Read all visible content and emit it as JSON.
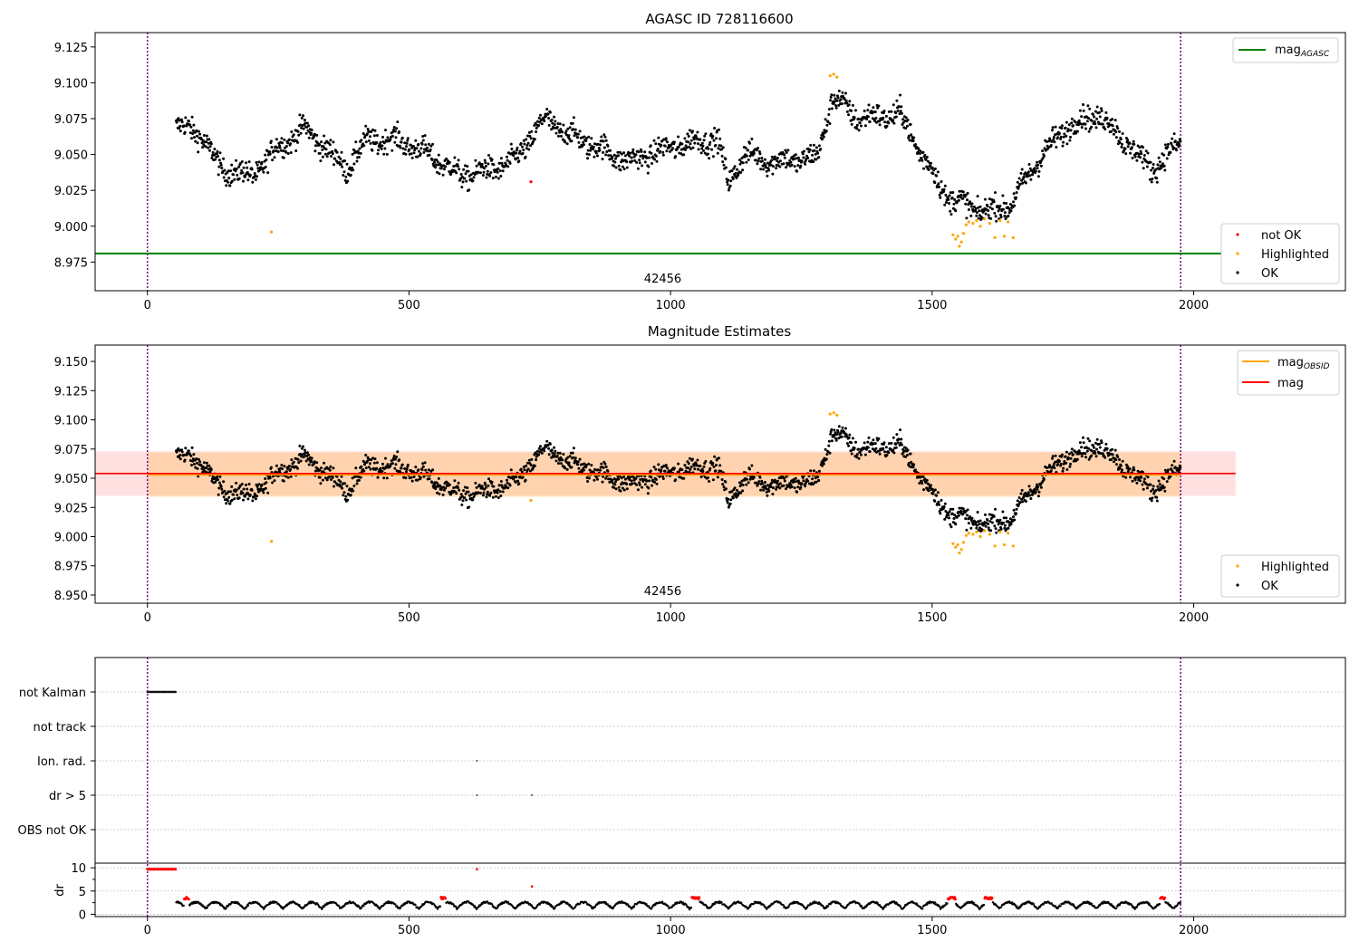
{
  "chart_data": [
    {
      "type": "scatter",
      "title": "AGASC ID 728116600",
      "xlim": [
        -100,
        2290
      ],
      "ylim": [
        8.955,
        9.135
      ],
      "xticks": [
        0,
        500,
        1000,
        1500,
        2000
      ],
      "yticks": [
        8.975,
        9.0,
        9.025,
        9.05,
        9.075,
        9.1,
        9.125
      ],
      "ytick_labels": [
        "8.975",
        "9.000",
        "9.025",
        "9.050",
        "9.075",
        "9.100",
        "9.125"
      ],
      "obsid_label": "42456",
      "obsid_label_x": 985,
      "vlines": [
        0,
        1975
      ],
      "hline_agasc": 8.981,
      "hline_x": [
        -100,
        2080
      ],
      "line_legend": [
        {
          "label": "mag",
          "sub": "AGASC",
          "color": "#008000"
        }
      ],
      "point_legend": [
        {
          "label": "not OK",
          "color": "#ff0000"
        },
        {
          "label": "Highlighted",
          "color": "#ffa500"
        },
        {
          "label": "OK",
          "color": "#000000"
        }
      ],
      "series": [
        {
          "name": "OK",
          "color": "#000000",
          "x_range": [
            55,
            1975
          ],
          "trend": [
            [
              55,
              9.07
            ],
            [
              100,
              9.065
            ],
            [
              140,
              9.04
            ],
            [
              200,
              9.035
            ],
            [
              250,
              9.055
            ],
            [
              300,
              9.068
            ],
            [
              340,
              9.055
            ],
            [
              380,
              9.04
            ],
            [
              420,
              9.06
            ],
            [
              480,
              9.06
            ],
            [
              540,
              9.05
            ],
            [
              600,
              9.035
            ],
            [
              660,
              9.04
            ],
            [
              700,
              9.045
            ],
            [
              760,
              9.075
            ],
            [
              800,
              9.065
            ],
            [
              860,
              9.055
            ],
            [
              920,
              9.045
            ],
            [
              1000,
              9.055
            ],
            [
              1060,
              9.06
            ],
            [
              1090,
              9.06
            ],
            [
              1110,
              9.03
            ],
            [
              1140,
              9.05
            ],
            [
              1200,
              9.045
            ],
            [
              1280,
              9.048
            ],
            [
              1310,
              9.09
            ],
            [
              1360,
              9.075
            ],
            [
              1440,
              9.078
            ],
            [
              1480,
              9.05
            ],
            [
              1530,
              9.02
            ],
            [
              1600,
              9.01
            ],
            [
              1650,
              9.015
            ],
            [
              1700,
              9.045
            ],
            [
              1760,
              9.07
            ],
            [
              1820,
              9.078
            ],
            [
              1880,
              9.055
            ],
            [
              1920,
              9.04
            ],
            [
              1975,
              9.058
            ]
          ]
        },
        {
          "name": "Highlighted",
          "color": "#ffa500",
          "points": [
            [
              237,
              8.996
            ],
            [
              1305,
              9.105
            ],
            [
              1312,
              9.106
            ],
            [
              1318,
              9.104
            ],
            [
              1540,
              8.994
            ],
            [
              1545,
              8.991
            ],
            [
              1549,
              8.993
            ],
            [
              1552,
              8.986
            ],
            [
              1556,
              8.989
            ],
            [
              1560,
              8.995
            ],
            [
              1565,
              9.001
            ],
            [
              1570,
              9.003
            ],
            [
              1578,
              9.002
            ],
            [
              1585,
              9.004
            ],
            [
              1592,
              9.0
            ],
            [
              1600,
              9.005
            ],
            [
              1610,
              9.002
            ],
            [
              1620,
              8.992
            ],
            [
              1630,
              9.004
            ],
            [
              1638,
              8.993
            ],
            [
              1645,
              9.003
            ],
            [
              1655,
              8.992
            ]
          ]
        },
        {
          "name": "not OK",
          "color": "#ff0000",
          "points": [
            [
              733,
              9.031
            ]
          ]
        }
      ]
    },
    {
      "type": "scatter",
      "title": "Magnitude Estimates",
      "xlim": [
        -100,
        2290
      ],
      "ylim": [
        8.943,
        9.164
      ],
      "xticks": [
        0,
        500,
        1000,
        1500,
        2000
      ],
      "yticks": [
        8.95,
        8.975,
        9.0,
        9.025,
        9.05,
        9.075,
        9.1,
        9.125,
        9.15
      ],
      "ytick_labels": [
        "8.950",
        "8.975",
        "9.000",
        "9.025",
        "9.050",
        "9.075",
        "9.100",
        "9.125",
        "9.150"
      ],
      "obsid_label": "42456",
      "obsid_label_x": 985,
      "vlines": [
        0,
        1975
      ],
      "mag_obsid": 9.053,
      "mag_obsid_band": [
        9.034,
        9.072
      ],
      "mag_obsid_x": [
        0,
        1975
      ],
      "mag": 9.054,
      "mag_band": [
        9.035,
        9.073
      ],
      "mag_x": [
        -100,
        2080
      ],
      "line_legend": [
        {
          "label": "mag",
          "sub": "OBSID",
          "color": "#ffa500"
        },
        {
          "label": "mag",
          "sub": "",
          "color": "#ff0000"
        }
      ],
      "point_legend": [
        {
          "label": "Highlighted",
          "color": "#ffa500"
        },
        {
          "label": "OK",
          "color": "#000000"
        }
      ],
      "series_ref": 0
    },
    {
      "type": "scatter",
      "xlim": [
        -100,
        2290
      ],
      "xticks": [
        0,
        500,
        1000,
        1500,
        2000
      ],
      "vlines": [
        0,
        1975
      ],
      "flag_labels": [
        "not Kalman",
        "not track",
        "Ion. rad.",
        "dr > 5",
        "OBS not OK"
      ],
      "flag_points": {
        "not Kalman": {
          "x_range": [
            0,
            55
          ]
        },
        "not track": {
          "x_range": null
        },
        "Ion. rad.": {
          "points": [
            630
          ]
        },
        "dr > 5": {
          "points": [
            630,
            735
          ]
        },
        "OBS not OK": {
          "x_range": null
        }
      },
      "dr": {
        "ylabel": "dr",
        "ylim": [
          -0.5,
          11
        ],
        "yticks": [
          0,
          5,
          10
        ],
        "ytick_labels": [
          "0",
          "5",
          "10"
        ],
        "capped": {
          "x_range": [
            0,
            55
          ],
          "value": 9.7,
          "color": "#ff0000"
        },
        "extra": [
          [
            630,
            9.7,
            "#ff0000"
          ],
          [
            735,
            6.0,
            "#ff0000"
          ]
        ],
        "x_range": [
          55,
          1975
        ]
      }
    }
  ]
}
